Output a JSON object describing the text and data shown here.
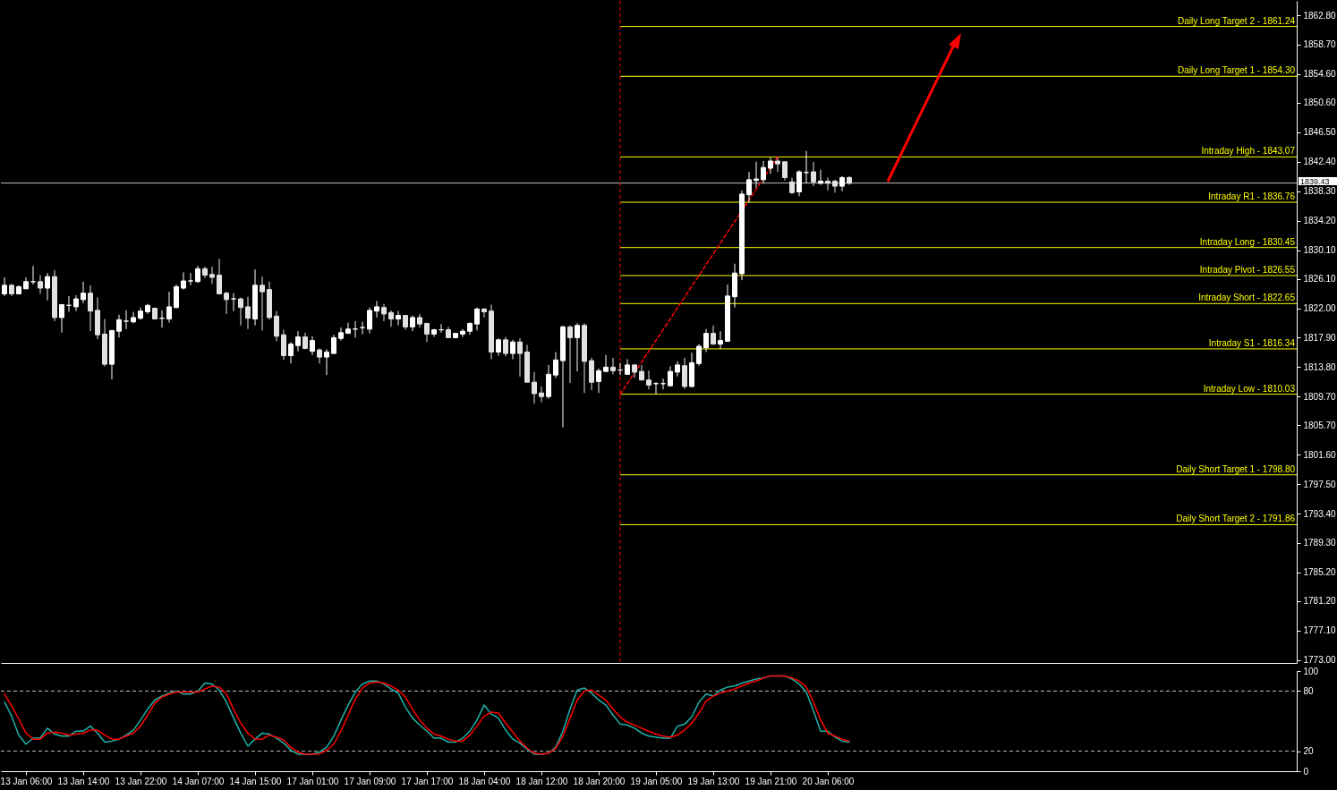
{
  "chart_data": [
    {
      "type": "candlestick",
      "tick_labels": "y",
      "colors": [
        "#ffffff",
        "#e2e2e2",
        "#ffffff",
        "#ffffff",
        "#ffffff",
        "#e2e2e2",
        "#ffffff",
        "#e2e2e2",
        "#ffffff",
        "#ffffff",
        "#ffffff",
        "#ffffff",
        "#e2e2e2",
        "#e2e2e2",
        "#e2e2e2",
        "#ffffff",
        "#ffffff",
        "#ffffff",
        "#ffffff",
        "#ffffff",
        "#ffffff",
        "#e2e2e2",
        "#ffffff",
        "#ffffff",
        "#ffffff",
        "#ffffff",
        "#ffffff",
        "#ffffff",
        "#e2e2e2",
        "#e2e2e2",
        "#e2e2e2",
        "#e2e2e2",
        "#ffffff",
        "#e2e2e2",
        "#e2e2e2",
        "#ffffff",
        "#e2e2e2",
        "#e2e2e2",
        "#e2e2e2",
        "#e2e2e2",
        "#ffffff",
        "#ffffff",
        "#e2e2e2",
        "#ffffff",
        "#e2e2e2",
        "#ffffff",
        "#ffffff",
        "#ffffff",
        "#ffffff",
        "#ffffff",
        "#ffffff",
        "#ffffff",
        "#ffffff",
        "#e2e2e2",
        "#e2e2e2",
        "#ffffff",
        "#e2e2e2",
        "#ffffff",
        "#e2e2e2",
        "#e2e2e2",
        "#ffffff",
        "#ffffff",
        "#e2e2e2",
        "#ffffff",
        "#ffffff",
        "#ffffff",
        "#ffffff",
        "#e2e2e2",
        "#e2e2e2",
        "#ffffff",
        "#e2e2e2",
        "#ffffff",
        "#e2e2e2",
        "#e2e2e2",
        "#e2e2e2",
        "#e2e2e2",
        "#ffffff",
        "#ffffff",
        "#ffffff",
        "#e2e2e2",
        "#ffffff",
        "#e2e2e2",
        "#e2e2e2",
        "#ffffff",
        "#ffffff",
        "#e2e2e2",
        "#ffffff",
        "#ffffff",
        "#e2e2e2",
        "#e2e2e2",
        "#e2e2e2",
        "#ffffff",
        "#ffffff",
        "#ffffff",
        "#ffffff",
        "#e2e2e2",
        "#ffffff",
        "#ffffff",
        "#ffffff",
        "#e2e2e2",
        "#ffffff",
        "#ffffff",
        "#ffffff",
        "#ffffff",
        "#ffffff",
        "#ffffff",
        "#ffffff",
        "#ffffff",
        "#e2e2e2",
        "#e2e2e2",
        "#e2e2e2",
        "#ffffff",
        "#ffffff",
        "#e2e2e2",
        "#ffffff",
        "#e2e2e2",
        "#e2e2e2",
        "#ffffff",
        "#e2e2e2",
        null,
        null,
        null,
        null,
        null,
        null,
        null,
        null,
        null,
        null,
        null,
        null,
        null,
        null,
        null,
        null,
        null,
        null,
        null,
        null,
        null,
        null,
        null,
        null,
        null,
        null,
        null,
        null,
        null,
        null,
        null,
        null,
        null,
        null,
        null,
        null,
        null,
        null,
        null,
        null,
        null,
        null,
        null,
        null,
        null,
        null,
        null,
        null,
        null,
        null,
        null,
        null,
        null,
        null,
        null,
        null,
        null,
        null,
        null,
        null,
        null,
        null
      ],
      "ohlc": [
        [
          1824.0,
          1826.3,
          1823.7,
          1825.2
        ],
        [
          1825.2,
          1825.4,
          1823.7,
          1824.0
        ],
        [
          1824.0,
          1825.2,
          1824.0,
          1825.0
        ],
        [
          1824.7,
          1826.3,
          1824.7,
          1825.7
        ],
        [
          1825.7,
          1827.9,
          1825.3,
          1825.7
        ],
        [
          1825.7,
          1826.6,
          1824.0,
          1824.8
        ],
        [
          1824.8,
          1826.9,
          1823.1,
          1826.4
        ],
        [
          1826.4,
          1827.3,
          1820.2,
          1820.7
        ],
        [
          1820.7,
          1822.6,
          1818.6,
          1822.5
        ],
        [
          1822.4,
          1823.7,
          1821.5,
          1822.4
        ],
        [
          1822.2,
          1823.8,
          1821.6,
          1823.3
        ],
        [
          1823.2,
          1825.7,
          1822.7,
          1824.1
        ],
        [
          1824.1,
          1825.2,
          1818.8,
          1821.6
        ],
        [
          1821.7,
          1823.5,
          1817.7,
          1818.3
        ],
        [
          1818.4,
          1820.5,
          1813.9,
          1814.2
        ],
        [
          1814.2,
          1818.9,
          1812.1,
          1818.9
        ],
        [
          1818.8,
          1821.1,
          1817.9,
          1820.4
        ],
        [
          1820.2,
          1821.7,
          1819.1,
          1820.2
        ],
        [
          1820.1,
          1821.5,
          1819.9,
          1820.7
        ],
        [
          1820.6,
          1822.1,
          1820.4,
          1821.6
        ],
        [
          1821.5,
          1822.6,
          1821.2,
          1822.4
        ],
        [
          1822.0,
          1822.1,
          1820.5,
          1820.5
        ],
        [
          1820.6,
          1821.7,
          1819.3,
          1820.6
        ],
        [
          1820.5,
          1824.3,
          1820.0,
          1822.2
        ],
        [
          1822.1,
          1825.3,
          1822.0,
          1825.0
        ],
        [
          1824.8,
          1827.0,
          1824.6,
          1825.8
        ],
        [
          1825.8,
          1826.9,
          1825.2,
          1825.8
        ],
        [
          1825.7,
          1827.9,
          1825.6,
          1827.5
        ],
        [
          1827.5,
          1827.8,
          1826.2,
          1826.6
        ],
        [
          1826.7,
          1827.8,
          1825.4,
          1826.3
        ],
        [
          1826.6,
          1828.9,
          1824.0,
          1824.0
        ],
        [
          1824.1,
          1824.3,
          1821.2,
          1823.2
        ],
        [
          1823.3,
          1824.1,
          1821.6,
          1823.3
        ],
        [
          1823.3,
          1823.5,
          1819.6,
          1822.1
        ],
        [
          1822.2,
          1823.6,
          1819.1,
          1820.6
        ],
        [
          1820.5,
          1827.4,
          1819.6,
          1825.2
        ],
        [
          1825.2,
          1826.4,
          1818.9,
          1824.3
        ],
        [
          1824.6,
          1825.7,
          1820.4,
          1820.7
        ],
        [
          1820.9,
          1821.6,
          1817.4,
          1818.1
        ],
        [
          1818.3,
          1819.0,
          1814.8,
          1815.4
        ],
        [
          1815.4,
          1817.3,
          1814.3,
          1817.0
        ],
        [
          1816.8,
          1818.8,
          1816.0,
          1818.0
        ],
        [
          1818.0,
          1818.6,
          1816.3,
          1816.4
        ],
        [
          1816.0,
          1818.1,
          1815.5,
          1817.5
        ],
        [
          1816.2,
          1816.4,
          1814.3,
          1815.2
        ],
        [
          1815.2,
          1816.3,
          1812.7,
          1815.9
        ],
        [
          1815.7,
          1818.3,
          1815.7,
          1817.9
        ],
        [
          1817.8,
          1819.3,
          1817.5,
          1818.6
        ],
        [
          1818.5,
          1820.0,
          1818.5,
          1819.1
        ],
        [
          1819.1,
          1820.2,
          1817.9,
          1819.1
        ],
        [
          1819.3,
          1820.1,
          1818.4,
          1819.3
        ],
        [
          1819.1,
          1822.1,
          1818.5,
          1821.7
        ],
        [
          1821.6,
          1823.0,
          1820.7,
          1822.2
        ],
        [
          1822.1,
          1822.6,
          1820.2,
          1821.2
        ],
        [
          1821.4,
          1821.7,
          1819.4,
          1820.5
        ],
        [
          1820.5,
          1821.6,
          1819.6,
          1821.0
        ],
        [
          1821.0,
          1821.0,
          1819.0,
          1819.4
        ],
        [
          1819.4,
          1821.0,
          1818.8,
          1820.7
        ],
        [
          1820.7,
          1821.2,
          1819.3,
          1819.8
        ],
        [
          1819.9,
          1819.9,
          1817.3,
          1818.4
        ],
        [
          1818.4,
          1819.1,
          1818.0,
          1819.0
        ],
        [
          1819.0,
          1819.8,
          1818.6,
          1819.0
        ],
        [
          1819.0,
          1819.4,
          1817.9,
          1817.9
        ],
        [
          1817.9,
          1818.5,
          1817.8,
          1818.5
        ],
        [
          1818.4,
          1819.1,
          1818.0,
          1818.8
        ],
        [
          1818.8,
          1820.0,
          1818.3,
          1819.9
        ],
        [
          1819.8,
          1822.1,
          1818.9,
          1821.9
        ],
        [
          1821.9,
          1822.0,
          1820.7,
          1821.5
        ],
        [
          1821.6,
          1822.5,
          1814.9,
          1815.9
        ],
        [
          1815.9,
          1817.8,
          1815.4,
          1817.6
        ],
        [
          1817.6,
          1818.0,
          1815.3,
          1815.7
        ],
        [
          1815.7,
          1817.6,
          1814.9,
          1817.3
        ],
        [
          1817.3,
          1817.8,
          1812.5,
          1815.7
        ],
        [
          1815.9,
          1816.9,
          1811.7,
          1811.7
        ],
        [
          1811.7,
          1813.1,
          1808.7,
          1810.1
        ],
        [
          1810.2,
          1811.1,
          1808.9,
          1809.7
        ],
        [
          1809.7,
          1814.1,
          1809.4,
          1812.8
        ],
        [
          1812.7,
          1815.9,
          1812.3,
          1814.8
        ],
        [
          1814.7,
          1819.6,
          1805.4,
          1819.4
        ],
        [
          1819.4,
          1819.6,
          1811.6,
          1817.9
        ],
        [
          1817.9,
          1819.9,
          1813.2,
          1819.6
        ],
        [
          1819.6,
          1819.9,
          1810.2,
          1814.6
        ],
        [
          1814.7,
          1815.1,
          1810.6,
          1811.7
        ],
        [
          1811.8,
          1813.6,
          1810.2,
          1813.3
        ],
        [
          1813.2,
          1815.5,
          1813.1,
          1813.8
        ],
        [
          1813.8,
          1815.1,
          1812.8,
          1813.3
        ],
        [
          1813.4,
          1814.4,
          1812.7,
          1813.4
        ],
        [
          1812.8,
          1814.9,
          1812.8,
          1814.1
        ],
        [
          1814.1,
          1814.2,
          1812.3,
          1813.1
        ],
        [
          1813.2,
          1814.1,
          1812.0,
          1812.0
        ],
        [
          1812.0,
          1813.3,
          1810.7,
          1811.3
        ],
        [
          1811.5,
          1811.7,
          1810.0,
          1811.5
        ],
        [
          1811.5,
          1812.2,
          1810.7,
          1811.5
        ],
        [
          1811.2,
          1813.9,
          1811.1,
          1813.2
        ],
        [
          1813.1,
          1814.6,
          1812.5,
          1814.1
        ],
        [
          1814.0,
          1815.1,
          1810.8,
          1811.1
        ],
        [
          1811.1,
          1815.8,
          1811.0,
          1814.4
        ],
        [
          1814.3,
          1817.0,
          1814.0,
          1816.7
        ],
        [
          1816.5,
          1819.1,
          1815.9,
          1818.5
        ],
        [
          1818.5,
          1819.6,
          1816.9,
          1817.0
        ],
        [
          1817.0,
          1818.8,
          1816.3,
          1817.5
        ],
        [
          1817.4,
          1825.3,
          1817.4,
          1823.7
        ],
        [
          1823.6,
          1828.2,
          1822.1,
          1826.9
        ],
        [
          1826.8,
          1838.4,
          1825.9,
          1837.9
        ],
        [
          1837.8,
          1841.0,
          1836.7,
          1839.9
        ],
        [
          1839.8,
          1842.4,
          1838.8,
          1840.0
        ],
        [
          1839.9,
          1842.5,
          1839.4,
          1841.6
        ],
        [
          1841.5,
          1843.0,
          1840.7,
          1842.5
        ],
        [
          1842.5,
          1843.0,
          1841.0,
          1842.1
        ],
        [
          1842.4,
          1842.4,
          1839.8,
          1840.2
        ],
        [
          1839.6,
          1840.2,
          1837.9,
          1838.1
        ],
        [
          1838.2,
          1841.2,
          1837.6,
          1841.0
        ],
        [
          1840.9,
          1843.9,
          1839.4,
          1840.9
        ],
        [
          1841.0,
          1842.4,
          1839.0,
          1839.6
        ],
        [
          1839.4,
          1841.3,
          1839.2,
          1839.7
        ],
        [
          1839.7,
          1840.2,
          1838.4,
          1839.4
        ],
        [
          1839.7,
          1839.9,
          1838.1,
          1839.0
        ],
        [
          1839.0,
          1840.4,
          1838.3,
          1840.2
        ],
        [
          1840.2,
          1840.4,
          1839.2,
          1839.4
        ],
        null,
        null,
        null,
        null,
        null,
        null,
        null,
        null,
        null,
        null,
        null,
        null,
        null,
        null,
        null,
        null,
        null,
        null,
        null,
        null,
        null,
        null,
        null,
        null,
        null,
        null,
        null,
        null,
        null,
        null,
        null,
        null,
        null,
        null,
        null,
        null,
        null,
        null,
        null,
        null,
        null,
        null,
        null,
        null,
        null,
        null,
        null,
        null,
        null,
        null,
        null,
        null,
        null,
        null,
        null,
        null,
        null,
        null,
        null,
        null,
        null,
        null
      ],
      "ylim": [
        1772.6,
        1864.8
      ],
      "yticks": [
        {
          "value": 1862.8,
          "label": "1862.80"
        },
        {
          "value": 1858.7,
          "label": "1858.70"
        },
        {
          "value": 1854.6,
          "label": "1854.60"
        },
        {
          "value": 1850.6,
          "label": "1850.60"
        },
        {
          "value": 1846.5,
          "label": "1846.50"
        },
        {
          "value": 1842.4,
          "label": "1842.40"
        },
        {
          "value": 1838.3,
          "label": "1838.30"
        },
        {
          "value": 1834.2,
          "label": "1834.20"
        },
        {
          "value": 1830.1,
          "label": "1830.10"
        },
        {
          "value": 1826.1,
          "label": "1826.10"
        },
        {
          "value": 1822.0,
          "label": "1822.00"
        },
        {
          "value": 1817.9,
          "label": "1817.90"
        },
        {
          "value": 1813.8,
          "label": "1813.80"
        },
        {
          "value": 1809.7,
          "label": "1809.70"
        },
        {
          "value": 1805.7,
          "label": "1805.70"
        },
        {
          "value": 1801.6,
          "label": "1801.60"
        },
        {
          "value": 1797.5,
          "label": "1797.50"
        },
        {
          "value": 1793.4,
          "label": "1793.40"
        },
        {
          "value": 1789.3,
          "label": "1789.30"
        },
        {
          "value": 1785.2,
          "label": "1785.20"
        },
        {
          "value": 1781.2,
          "label": "1781.20"
        },
        {
          "value": 1777.1,
          "label": "1777.10"
        },
        {
          "value": 1773.0,
          "label": "1773.00"
        }
      ],
      "ref_lines": [
        {
          "axis": "y",
          "value": 1861.24,
          "label": "Daily Long Target 2 - 1861.24",
          "color": "#ffff00"
        },
        {
          "axis": "y",
          "value": 1854.3,
          "label": "Daily Long Target 1 - 1854.30",
          "color": "#ffff00"
        },
        {
          "axis": "y",
          "value": 1843.07,
          "label": "Intraday High - 1843.07",
          "color": "#ffff00"
        },
        {
          "axis": "y",
          "value": 1836.76,
          "label": "Intraday R1 - 1836.76",
          "color": "#ffff00"
        },
        {
          "axis": "y",
          "value": 1830.45,
          "label": "Intraday Long - 1830.45",
          "color": "#ffff00"
        },
        {
          "axis": "y",
          "value": 1826.55,
          "label": "Intraday Pivot - 1826.55",
          "color": "#ffff00"
        },
        {
          "axis": "y",
          "value": 1822.65,
          "label": "Intraday Short - 1822.65",
          "color": "#ffff00"
        },
        {
          "axis": "y",
          "value": 1816.34,
          "label": "Intraday S1 - 1816.34",
          "color": "#ffff00"
        },
        {
          "axis": "y",
          "value": 1810.03,
          "label": "Intraday Low - 1810.03",
          "color": "#ffff00"
        },
        {
          "axis": "y",
          "value": 1798.8,
          "label": "Daily Short Target 1 - 1798.80",
          "color": "#ffff00"
        },
        {
          "axis": "y",
          "value": 1791.86,
          "label": "Daily Short Target 2 - 1791.86",
          "color": "#ffff00"
        },
        {
          "axis": "y",
          "value": 1839.43,
          "color": "#c0c0c0"
        }
      ],
      "annotations": [
        "1839.43"
      ],
      "series": [
        {
          "type": "line",
          "color": "#ff0000",
          "line_style": "dashed",
          "values": [
            null,
            null,
            null,
            null,
            null,
            null,
            null,
            null,
            null,
            null,
            null,
            null,
            null,
            null,
            null,
            null,
            null,
            null,
            null,
            null,
            null,
            null,
            null,
            null,
            null,
            null,
            null,
            null,
            null,
            null,
            null,
            null,
            null,
            null,
            null,
            null,
            null,
            null,
            null,
            null,
            null,
            null,
            null,
            null,
            null,
            null,
            null,
            null,
            null,
            null,
            null,
            null,
            null,
            null,
            null,
            null,
            null,
            null,
            null,
            null,
            null,
            null,
            null,
            null,
            null,
            null,
            null,
            null,
            null,
            null,
            null,
            null,
            null,
            null,
            null,
            null,
            null,
            null,
            null,
            null,
            null,
            null,
            null,
            null,
            null,
            null,
            1810.0,
            null,
            null,
            null,
            null,
            null,
            null,
            null,
            null,
            null,
            null,
            null,
            null,
            null,
            null,
            null,
            null,
            null,
            null,
            null,
            null,
            null,
            1843.1,
            null,
            null,
            null,
            null,
            null,
            null,
            null,
            null,
            null,
            null,
            null,
            null,
            null,
            null,
            null,
            null,
            null,
            null,
            null,
            null,
            null,
            null,
            null,
            null,
            null,
            null,
            null,
            null,
            null,
            null,
            null,
            null,
            null,
            null,
            null,
            null,
            null,
            null,
            null,
            null,
            null,
            null,
            null,
            null,
            null,
            null,
            null,
            null,
            null,
            null,
            null,
            null,
            null,
            null,
            null,
            null,
            null,
            null,
            null,
            null,
            null,
            null,
            null,
            null,
            null,
            null,
            null,
            null,
            null,
            null,
            null,
            null
          ]
        }
      ]
    },
    {
      "type": "line",
      "categories": [
        null,
        null,
        null,
        "13 Jan 06:00",
        null,
        null,
        null,
        null,
        null,
        null,
        null,
        "13 Jan 14:00",
        null,
        null,
        null,
        null,
        null,
        null,
        null,
        "13 Jan 22:00",
        null,
        null,
        null,
        null,
        null,
        null,
        null,
        "14 Jan 07:00",
        null,
        null,
        null,
        null,
        null,
        null,
        null,
        "14 Jan 15:00",
        null,
        null,
        null,
        null,
        null,
        null,
        null,
        "17 Jan 01:00",
        null,
        null,
        null,
        null,
        null,
        null,
        null,
        "17 Jan 09:00",
        null,
        null,
        null,
        null,
        null,
        null,
        null,
        "17 Jan 17:00",
        null,
        null,
        null,
        null,
        null,
        null,
        null,
        "18 Jan 04:00",
        null,
        null,
        null,
        null,
        null,
        null,
        null,
        "18 Jan 12:00",
        null,
        null,
        null,
        null,
        null,
        null,
        null,
        "18 Jan 20:00",
        null,
        null,
        null,
        null,
        null,
        null,
        null,
        "19 Jan 05:00",
        null,
        null,
        null,
        null,
        null,
        null,
        null,
        "19 Jan 13:00",
        null,
        null,
        null,
        null,
        null,
        null,
        null,
        "19 Jan 21:00",
        null,
        null,
        null,
        null,
        null,
        null,
        null,
        "20 Jan 06:00",
        null,
        null,
        null,
        null,
        null,
        null,
        null,
        null,
        null,
        null,
        null,
        null,
        null,
        null,
        null,
        null,
        null,
        null,
        null,
        null,
        null,
        null,
        null,
        null,
        null,
        null,
        null,
        null,
        null,
        null,
        null,
        null,
        null,
        null,
        null,
        null,
        null,
        null,
        null,
        null,
        null,
        null,
        null,
        null,
        null,
        null,
        null,
        null,
        null,
        null,
        null,
        null,
        null,
        null,
        null,
        null,
        null,
        null,
        null,
        null,
        null,
        null,
        null,
        null,
        null
      ],
      "ylim": [
        0,
        100
      ],
      "yticks": [
        0,
        20,
        80,
        100
      ],
      "ref_lines": [
        {
          "axis": "y",
          "value": 80,
          "color": "#c0c0c0",
          "line_style": "dashed"
        },
        {
          "axis": "y",
          "value": 20,
          "color": "#c0c0c0",
          "line_style": "dashed"
        }
      ],
      "series": [
        {
          "color": "#20b2aa",
          "values": [
            69,
            55,
            36,
            27,
            33,
            33,
            43,
            37,
            35,
            35,
            40,
            40,
            45,
            38,
            29,
            30,
            32,
            36,
            41,
            51,
            62,
            71,
            75,
            78,
            80,
            77,
            77,
            80,
            88,
            87,
            81,
            69,
            53,
            38,
            25,
            32,
            38,
            37,
            33,
            28,
            21,
            17,
            17,
            17,
            19,
            24,
            35,
            51,
            66,
            79,
            87,
            90,
            90,
            87,
            82,
            78,
            64,
            53,
            46,
            40,
            33,
            33,
            29,
            29,
            33,
            40,
            51,
            66,
            57,
            53,
            41,
            32,
            28,
            22,
            17,
            17,
            18,
            24,
            40,
            62,
            81,
            83,
            78,
            71,
            66,
            56,
            47,
            46,
            43,
            38,
            35,
            34,
            33,
            33,
            45,
            47,
            54,
            69,
            77,
            75,
            81,
            84,
            85,
            88,
            90,
            92,
            93,
            95,
            95,
            95,
            92,
            87,
            79,
            60,
            40,
            40,
            34,
            30,
            29,
            null,
            null,
            null,
            null,
            null,
            null,
            null,
            null,
            null,
            null,
            null,
            null,
            null,
            null,
            null,
            null,
            null,
            null,
            null,
            null,
            null,
            null,
            null,
            null,
            null,
            null,
            null,
            null,
            null,
            null,
            null,
            null,
            null,
            null,
            null,
            null,
            null,
            null,
            null,
            null,
            null,
            null,
            null,
            null,
            null,
            null,
            null,
            null,
            null,
            null,
            null,
            null,
            null,
            null,
            null,
            null,
            null,
            null,
            null,
            null,
            null,
            null
          ]
        },
        {
          "color": "#ff0000",
          "values": [
            77,
            65,
            52,
            38,
            32,
            32,
            38,
            39,
            38,
            36,
            37,
            38,
            41,
            41,
            36,
            32,
            32,
            35,
            38,
            45,
            56,
            68,
            74,
            77,
            79,
            79,
            79,
            79,
            82,
            85,
            84,
            77,
            62,
            48,
            38,
            32,
            32,
            36,
            34,
            31,
            24,
            19,
            17,
            17,
            17,
            21,
            27,
            40,
            56,
            72,
            83,
            88,
            89,
            88,
            85,
            81,
            74,
            62,
            51,
            43,
            37,
            35,
            32,
            30,
            30,
            36,
            45,
            55,
            59,
            58,
            48,
            39,
            30,
            23,
            18,
            17,
            18,
            23,
            35,
            53,
            71,
            80,
            81,
            76,
            71,
            62,
            54,
            49,
            46,
            43,
            40,
            37,
            35,
            34,
            36,
            41,
            48,
            58,
            70,
            75,
            78,
            80,
            82,
            85,
            88,
            90,
            93,
            95,
            95,
            95,
            93,
            90,
            84,
            69,
            51,
            38,
            35,
            32,
            30,
            null,
            null,
            null,
            null,
            null,
            null,
            null,
            null,
            null,
            null,
            null,
            null,
            null,
            null,
            null,
            null,
            null,
            null,
            null,
            null,
            null,
            null,
            null,
            null,
            null,
            null,
            null,
            null,
            null,
            null,
            null,
            null,
            null,
            null,
            null,
            null,
            null,
            null,
            null,
            null,
            null,
            null,
            null,
            null,
            null,
            null,
            null,
            null,
            null,
            null,
            null,
            null,
            null,
            null,
            null,
            null,
            null,
            null,
            null,
            null,
            null,
            null
          ]
        }
      ]
    }
  ]
}
